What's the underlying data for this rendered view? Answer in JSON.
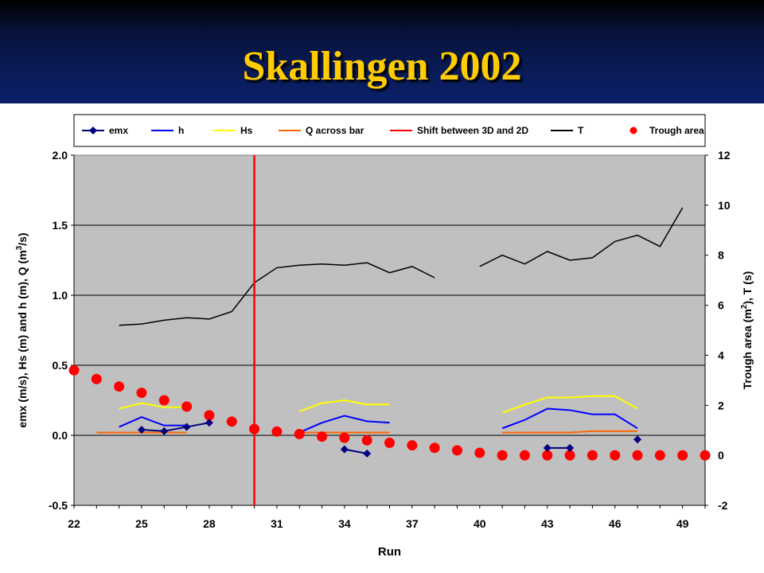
{
  "slide": {
    "title": "Skallingen 2002"
  },
  "chart_data": {
    "type": "line",
    "title": "",
    "xlabel": "Run",
    "ylabel": "emx (m/s), Hs (m) and h (m), Q (m³/s)",
    "ylabel_parts": [
      "emx (m/s), Hs (m) and h (m), Q (m",
      "3",
      "/s)"
    ],
    "y2label": "Trough area (m², T (s)",
    "y2label_parts": [
      "Trough area (m",
      "2",
      "), T (s)"
    ],
    "xlim": [
      22,
      50
    ],
    "ylim": [
      -0.5,
      2.0
    ],
    "y2lim": [
      -2,
      12
    ],
    "x_ticks": [
      22,
      25,
      28,
      31,
      34,
      37,
      40,
      43,
      46,
      49
    ],
    "y_ticks": [
      -0.5,
      0.0,
      0.5,
      1.0,
      1.5,
      2.0
    ],
    "y_tick_labels": [
      "-0.5",
      "0.0",
      "0.5",
      "1.0",
      "1.5",
      "2.0"
    ],
    "y2_ticks": [
      -2,
      0,
      2,
      4,
      6,
      8,
      10,
      12
    ],
    "y2_tick_labels": [
      "-2",
      "0",
      "2",
      "4",
      "6",
      "8",
      "10",
      "12"
    ],
    "grid": true,
    "legend_position": "top",
    "colors": {
      "plot_bg": "#c0c0c0",
      "emx": "#000080",
      "h": "#0000ff",
      "Hs": "#ffff00",
      "Q": "#ff6600",
      "shift": "#ff0000",
      "T": "#000000",
      "trough": "#ff0000"
    },
    "series": [
      {
        "name": "emx",
        "axis": "left",
        "style": "line-diamond",
        "segments": [
          [
            [
              25,
              0.04
            ],
            [
              26,
              0.03
            ],
            [
              27,
              0.06
            ],
            [
              28,
              0.09
            ]
          ],
          [
            [
              34,
              -0.1
            ],
            [
              35,
              -0.13
            ]
          ],
          [
            [
              43,
              -0.09
            ],
            [
              44,
              -0.09
            ]
          ],
          [
            [
              47,
              -0.03
            ]
          ]
        ]
      },
      {
        "name": "h",
        "axis": "left",
        "style": "line",
        "segments": [
          [
            [
              24,
              0.06
            ],
            [
              25,
              0.13
            ],
            [
              26,
              0.07
            ],
            [
              27,
              0.07
            ]
          ],
          [
            [
              32,
              0.02
            ],
            [
              33,
              0.09
            ],
            [
              34,
              0.14
            ],
            [
              35,
              0.1
            ],
            [
              36,
              0.09
            ]
          ],
          [
            [
              41,
              0.05
            ],
            [
              42,
              0.11
            ],
            [
              43,
              0.19
            ],
            [
              44,
              0.18
            ],
            [
              45,
              0.15
            ],
            [
              46,
              0.15
            ],
            [
              47,
              0.05
            ]
          ]
        ]
      },
      {
        "name": "Hs",
        "axis": "left",
        "style": "line",
        "segments": [
          [
            [
              24,
              0.19
            ],
            [
              25,
              0.23
            ],
            [
              26,
              0.2
            ],
            [
              27,
              0.2
            ]
          ],
          [
            [
              32,
              0.17
            ],
            [
              33,
              0.23
            ],
            [
              34,
              0.25
            ],
            [
              35,
              0.22
            ],
            [
              36,
              0.22
            ]
          ],
          [
            [
              41,
              0.16
            ],
            [
              42,
              0.22
            ],
            [
              43,
              0.27
            ],
            [
              44,
              0.27
            ],
            [
              45,
              0.28
            ],
            [
              46,
              0.28
            ],
            [
              47,
              0.19
            ]
          ]
        ]
      },
      {
        "name": "Q across bar",
        "axis": "left",
        "style": "line",
        "segments": [
          [
            [
              23,
              0.02
            ],
            [
              24,
              0.02
            ],
            [
              25,
              0.02
            ],
            [
              26,
              0.02
            ],
            [
              27,
              0.02
            ]
          ],
          [
            [
              32,
              0.02
            ],
            [
              33,
              0.02
            ],
            [
              34,
              0.02
            ],
            [
              35,
              0.02
            ],
            [
              36,
              0.02
            ]
          ],
          [
            [
              41,
              0.02
            ],
            [
              42,
              0.02
            ],
            [
              43,
              0.02
            ],
            [
              44,
              0.02
            ],
            [
              45,
              0.03
            ],
            [
              46,
              0.03
            ],
            [
              47,
              0.03
            ]
          ]
        ]
      },
      {
        "name": "Shift between 3D and 2D",
        "axis": "left",
        "style": "vline",
        "x": 30
      },
      {
        "name": "T",
        "axis": "right",
        "style": "line",
        "segments": [
          [
            [
              24,
              5.2
            ],
            [
              25,
              5.25
            ],
            [
              26,
              5.4
            ],
            [
              27,
              5.5
            ],
            [
              28,
              5.45
            ],
            [
              29,
              5.75
            ],
            [
              30,
              6.9
            ],
            [
              31,
              7.5
            ],
            [
              32,
              7.6
            ],
            [
              33,
              7.65
            ],
            [
              34,
              7.6
            ],
            [
              35,
              7.7
            ],
            [
              36,
              7.3
            ],
            [
              37,
              7.55
            ],
            [
              38,
              7.1
            ]
          ],
          [
            [
              40,
              7.55
            ],
            [
              41,
              8.0
            ],
            [
              42,
              7.65
            ],
            [
              43,
              8.15
            ],
            [
              44,
              7.8
            ],
            [
              45,
              7.9
            ],
            [
              46,
              8.55
            ],
            [
              47,
              8.8
            ],
            [
              48,
              8.35
            ],
            [
              49,
              9.9
            ]
          ]
        ]
      },
      {
        "name": "Trough area",
        "axis": "right",
        "style": "marker",
        "points": [
          [
            22,
            3.4
          ],
          [
            23,
            3.05
          ],
          [
            24,
            2.75
          ],
          [
            25,
            2.5
          ],
          [
            26,
            2.2
          ],
          [
            27,
            1.95
          ],
          [
            28,
            1.6
          ],
          [
            29,
            1.35
          ],
          [
            30,
            1.05
          ],
          [
            31,
            0.95
          ],
          [
            32,
            0.85
          ],
          [
            33,
            0.75
          ],
          [
            34,
            0.7
          ],
          [
            35,
            0.6
          ],
          [
            36,
            0.5
          ],
          [
            37,
            0.4
          ],
          [
            38,
            0.3
          ],
          [
            39,
            0.2
          ],
          [
            40,
            0.1
          ],
          [
            41,
            0.0
          ],
          [
            42,
            0.0
          ],
          [
            43,
            0.0
          ],
          [
            44,
            0.0
          ],
          [
            45,
            0.0
          ],
          [
            46,
            0.0
          ],
          [
            47,
            0.0
          ],
          [
            48,
            0.0
          ],
          [
            49,
            0.0
          ],
          [
            50,
            0.0
          ]
        ]
      }
    ]
  }
}
